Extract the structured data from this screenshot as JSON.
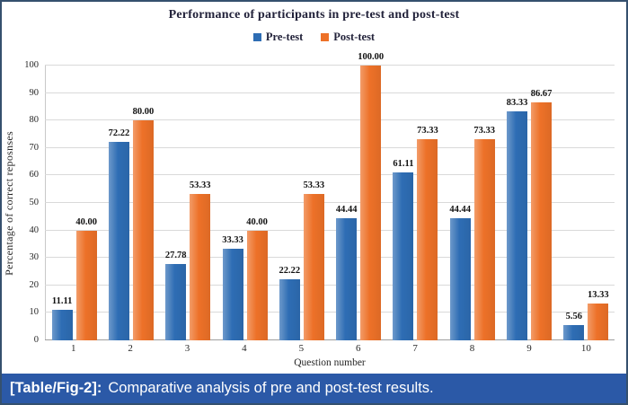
{
  "chart_data": {
    "type": "bar",
    "title": "Performance of participants in pre-test and post-test",
    "xlabel": "Question number",
    "ylabel": "Percentage of correct reposnses",
    "categories": [
      "1",
      "2",
      "3",
      "4",
      "5",
      "6",
      "7",
      "8",
      "9",
      "10"
    ],
    "series": [
      {
        "name": "Pre-test",
        "color": "#2E6DB4",
        "values": [
          11.11,
          72.22,
          27.78,
          33.33,
          22.22,
          44.44,
          61.11,
          44.44,
          83.33,
          5.56
        ],
        "labels": [
          "11.11",
          "72.22",
          "27.78",
          "33.33",
          "22.22",
          "44.44",
          "61.11",
          "44.44",
          "83.33",
          "5.56"
        ]
      },
      {
        "name": "Post-test",
        "color": "#ED7128",
        "values": [
          40.0,
          80.0,
          53.33,
          40.0,
          53.33,
          100.0,
          73.33,
          73.33,
          86.67,
          13.33
        ],
        "labels": [
          "40.00",
          "80.00",
          "53.33",
          "40.00",
          "53.33",
          "100.00",
          "73.33",
          "73.33",
          "86.67",
          "13.33"
        ]
      }
    ],
    "ylim": [
      0,
      100
    ],
    "ytick_step": 10,
    "grid": true,
    "legend_position": "top"
  },
  "caption": {
    "tag": "[Table/Fig-2]:",
    "text": "Comparative analysis of pre and post-test results."
  },
  "colors": {
    "pre_test": "#2E6DB4",
    "post_test": "#ED7128",
    "caption_background": "#2B59A7",
    "figure_border": "#35506E",
    "gridline": "#D9D9D9",
    "title_text": "#22223A",
    "caption_text": "#FFFFFF"
  }
}
